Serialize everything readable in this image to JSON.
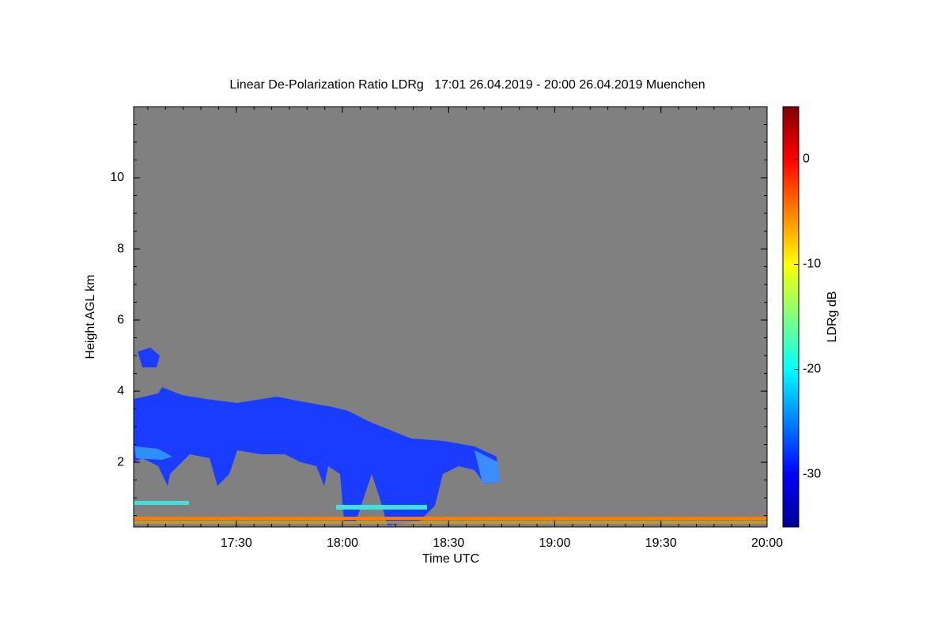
{
  "chart_data": {
    "type": "heatmap",
    "title": "Linear De-Polarization Ratio LDRg   17:01 26.04.2019 - 20:00 26.04.2019 Muenchen",
    "x_label": "Time UTC",
    "y_label": "Height AGL km",
    "xlim": [
      1021,
      1200
    ],
    "xticks": [
      {
        "value": 1050,
        "label": "17:30"
      },
      {
        "value": 1080,
        "label": "18:00"
      },
      {
        "value": 1110,
        "label": "18:30"
      },
      {
        "value": 1140,
        "label": "19:00"
      },
      {
        "value": 1170,
        "label": "19:30"
      },
      {
        "value": 1200,
        "label": "20:00"
      }
    ],
    "ylim": [
      0.18,
      12
    ],
    "yticks": [
      2,
      4,
      6,
      8,
      10
    ],
    "colorbar": {
      "label": "LDRg dB",
      "lim": [
        -35,
        5
      ],
      "ticks": [
        -30,
        -20,
        -10,
        0
      ],
      "colors": [
        "#00008f",
        "#0000ff",
        "#0080ff",
        "#00ffff",
        "#80ff80",
        "#ffff00",
        "#ff8000",
        "#ff0000",
        "#800000"
      ]
    },
    "background_color": "#808080"
  }
}
